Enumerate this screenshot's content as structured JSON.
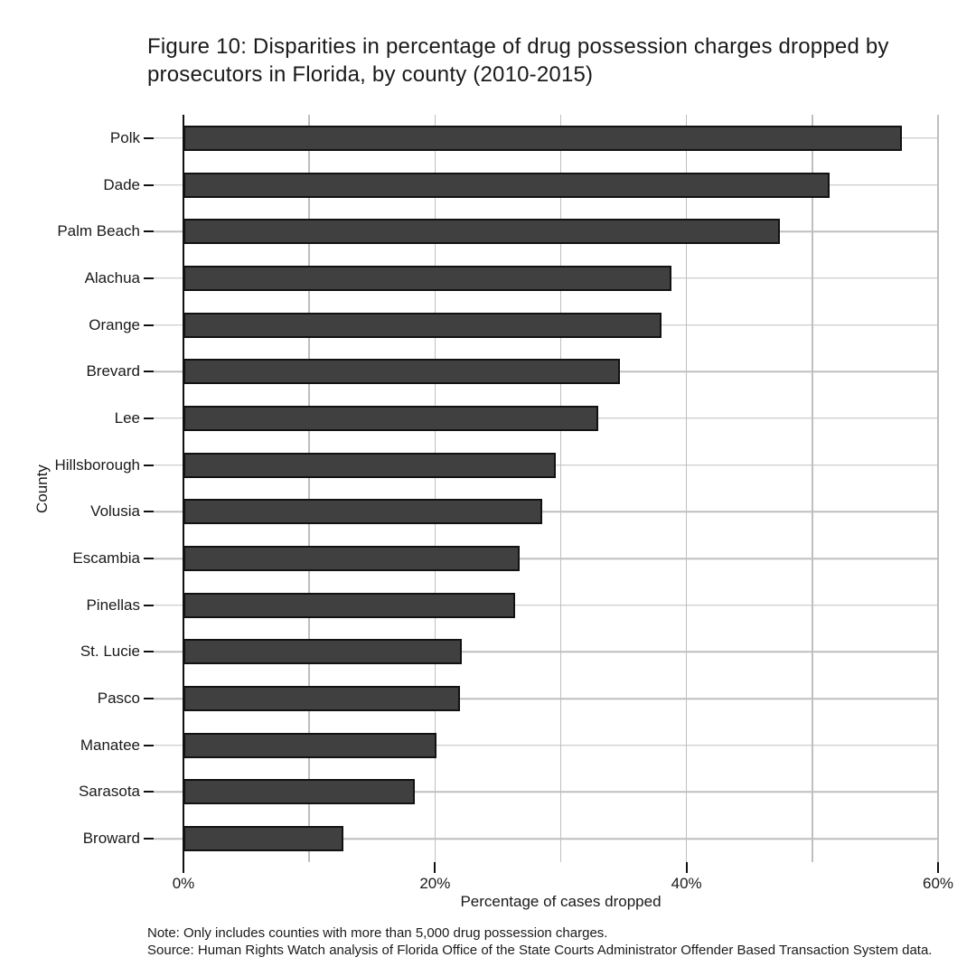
{
  "title": {
    "line1": "Figure 10: Disparities in percentage of drug possession charges dropped by",
    "line2": "prosecutors in Florida, by county (2010-2015)"
  },
  "chart_data": {
    "type": "bar",
    "orientation": "horizontal",
    "title": "Figure 10: Disparities in percentage of drug possession charges dropped by prosecutors in Florida, by county (2010-2015)",
    "xlabel": "Percentage of cases dropped",
    "ylabel": "County",
    "xlim": [
      0,
      60
    ],
    "gridline_step": 10,
    "grid": "on",
    "x_tick_values": [
      0,
      20,
      40,
      60
    ],
    "x_tick_labels": [
      "0%",
      "20%",
      "40%",
      "60%"
    ],
    "categories": [
      "Polk",
      "Dade",
      "Palm Beach",
      "Alachua",
      "Orange",
      "Brevard",
      "Lee",
      "Hillsborough",
      "Volusia",
      "Escambia",
      "Pinellas",
      "St. Lucie",
      "Pasco",
      "Manatee",
      "Sarasota",
      "Broward"
    ],
    "values": [
      57.1,
      51.4,
      47.4,
      38.8,
      38.0,
      34.7,
      33.0,
      29.6,
      28.5,
      26.7,
      26.4,
      22.1,
      22.0,
      20.1,
      18.4,
      12.7
    ],
    "colors": {
      "bar_fill": "#404040",
      "bar_border": "#121212",
      "gridline": "#bfbfbf",
      "axis": "#111111",
      "text": "#1a1a1a"
    }
  },
  "notes": {
    "line1": "Note: Only includes counties with more than 5,000 drug possession charges.",
    "line2": "Source: Human Rights Watch analysis of Florida Office of the State Courts Administrator Offender Based Transaction System data."
  }
}
